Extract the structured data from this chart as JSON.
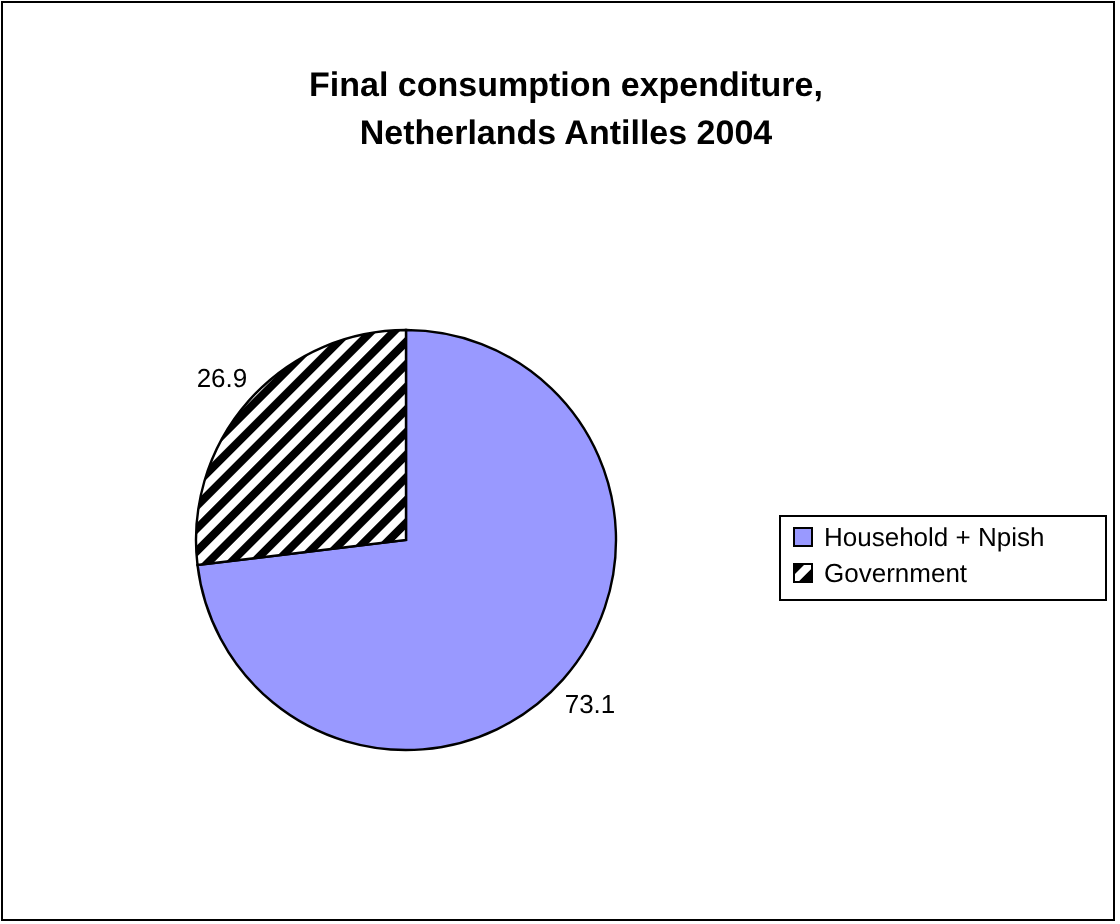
{
  "chart_data": {
    "type": "pie",
    "title": "Final consumption expenditure,\nNetherlands Antilles 2004",
    "categories": [
      "Household + Npish",
      "Government"
    ],
    "values": [
      73.1,
      26.9
    ],
    "colors": [
      "#9999ff",
      "#000000"
    ],
    "data_labels": true,
    "legend": "right"
  }
}
